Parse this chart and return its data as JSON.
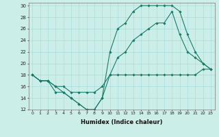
{
  "title": "",
  "xlabel": "Humidex (Indice chaleur)",
  "bg_color": "#cceee8",
  "grid_color": "#aadddd",
  "line_color": "#1a7a6a",
  "xlim": [
    -0.5,
    23.5
  ],
  "ylim": [
    12,
    30.5
  ],
  "xticks": [
    0,
    1,
    2,
    3,
    4,
    5,
    6,
    7,
    8,
    9,
    10,
    11,
    12,
    13,
    14,
    15,
    16,
    17,
    18,
    19,
    20,
    21,
    22,
    23
  ],
  "yticks": [
    12,
    14,
    16,
    18,
    20,
    22,
    24,
    26,
    28,
    30
  ],
  "line1_x": [
    0,
    1,
    2,
    3,
    4,
    5,
    6,
    7,
    8,
    9,
    10,
    11,
    12,
    13,
    14,
    15,
    16,
    17,
    18,
    19,
    20,
    21,
    22,
    23
  ],
  "line1_y": [
    18,
    17,
    17,
    16,
    15,
    14,
    13,
    12,
    12,
    14,
    18,
    18,
    18,
    18,
    18,
    18,
    18,
    18,
    18,
    18,
    18,
    18,
    19,
    19
  ],
  "line2_x": [
    0,
    1,
    2,
    3,
    4,
    5,
    6,
    7,
    8,
    9,
    10,
    11,
    12,
    13,
    14,
    15,
    16,
    17,
    18,
    19,
    20,
    21,
    22,
    23
  ],
  "line2_y": [
    18,
    17,
    17,
    15,
    15,
    14,
    13,
    12,
    12,
    14,
    22,
    26,
    27,
    29,
    30,
    30,
    30,
    30,
    30,
    29,
    25,
    22,
    20,
    19
  ],
  "line3_x": [
    0,
    1,
    2,
    3,
    4,
    5,
    6,
    7,
    8,
    9,
    10,
    11,
    12,
    13,
    14,
    15,
    16,
    17,
    18,
    19,
    20,
    21,
    22,
    23
  ],
  "line3_y": [
    18,
    17,
    17,
    16,
    16,
    15,
    15,
    15,
    15,
    16,
    18,
    21,
    22,
    24,
    25,
    26,
    27,
    27,
    29,
    25,
    22,
    21,
    20,
    19
  ]
}
